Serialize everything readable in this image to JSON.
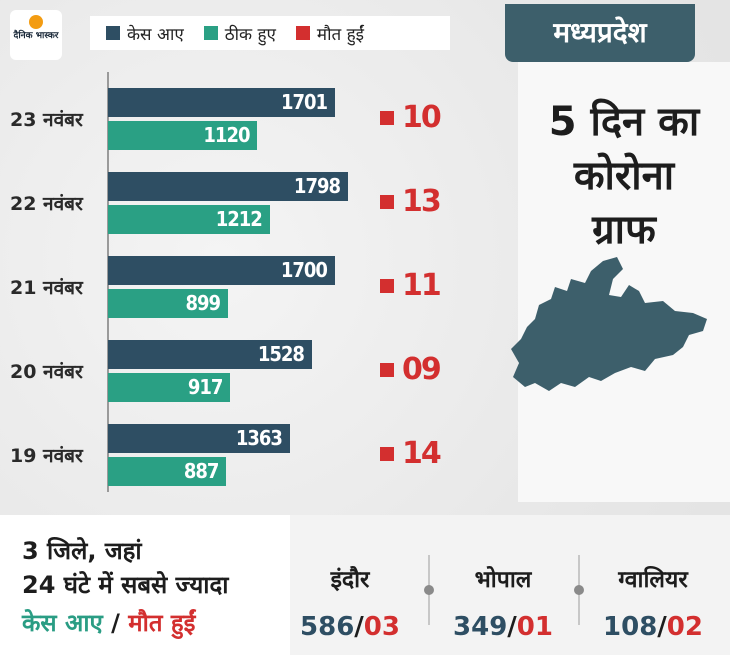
{
  "brand": {
    "logo_text": "दैनिक भास्कर"
  },
  "legend": {
    "items": [
      {
        "label": "केस आए",
        "color": "#2e4e63"
      },
      {
        "label": "ठीक हुए",
        "color": "#2aa084"
      },
      {
        "label": "मौत हुईं",
        "color": "#d32f2f"
      }
    ]
  },
  "panel": {
    "state": "मध्यप्रदेश",
    "title_lines": [
      "5 दिन का",
      "कोरोना",
      "ग्राफ"
    ]
  },
  "chart_data": {
    "type": "bar",
    "orientation": "horizontal",
    "categories": [
      "23 नवंबर",
      "22 नवंबर",
      "21 नवंबर",
      "20 नवंबर",
      "19 नवंबर"
    ],
    "series": [
      {
        "name": "केस आए",
        "values": [
          1701,
          1798,
          1700,
          1528,
          1363
        ],
        "labels": [
          "1701",
          "1798",
          "1700",
          "1528",
          "1363"
        ]
      },
      {
        "name": "ठीक हुए",
        "values": [
          1120,
          1212,
          899,
          917,
          887
        ],
        "labels": [
          "1120",
          "1212",
          "899",
          "917",
          "887"
        ]
      },
      {
        "name": "मौत हुईं",
        "values": [
          10,
          13,
          11,
          9,
          14
        ],
        "labels": [
          "10",
          "13",
          "11",
          "09",
          "14"
        ]
      }
    ],
    "xlim": [
      0,
      1850
    ]
  },
  "bottom": {
    "lines": [
      "3 जिले, जहां",
      "24 घंटे में सबसे ज्यादा"
    ],
    "line3_cases": "केस आए",
    "line3_sep": " / ",
    "line3_deaths": "मौत हुईं",
    "cities": [
      {
        "name": "इंदौर",
        "cases": "586",
        "slash": "/",
        "deaths": "03"
      },
      {
        "name": "भोपाल",
        "cases": "349",
        "slash": "/",
        "deaths": "01"
      },
      {
        "name": "ग्वालियर",
        "cases": "108",
        "slash": "/",
        "deaths": "02"
      }
    ]
  }
}
